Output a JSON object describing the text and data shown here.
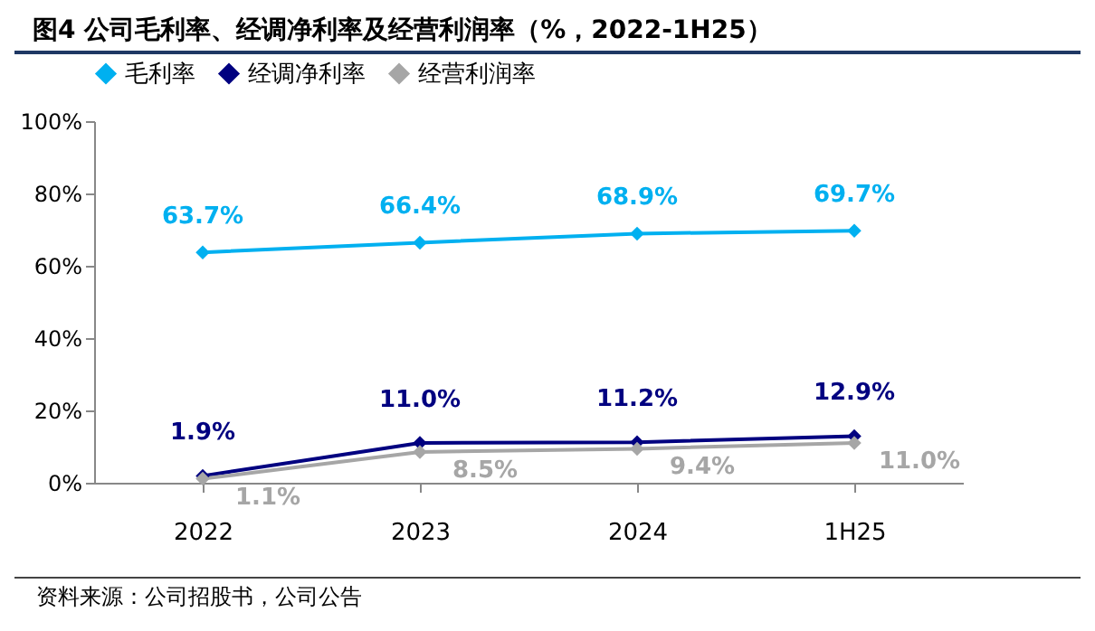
{
  "chart_data": {
    "type": "line",
    "title": "图4 公司毛利率、经调净利率及经营利润率（%，2022-1H25）",
    "annotations": [
      "资料来源：公司招股书，公司公告"
    ],
    "categories": [
      "2022",
      "2023",
      "2024",
      "1H25"
    ],
    "series": [
      {
        "name": "毛利率",
        "color": "#00b0f0",
        "values": [
          63.7,
          66.4,
          68.9,
          69.7
        ],
        "value_labels": [
          "63.7%",
          "66.4%",
          "68.9%",
          "69.7%"
        ]
      },
      {
        "name": "经调净利率",
        "color": "#000080",
        "values": [
          1.9,
          11.0,
          11.2,
          12.9
        ],
        "value_labels": [
          "1.9%",
          "11.0%",
          "11.2%",
          "12.9%"
        ]
      },
      {
        "name": "经营利润率",
        "color": "#a6a6a6",
        "values": [
          1.1,
          8.5,
          9.4,
          11.0
        ],
        "value_labels": [
          "1.1%",
          "8.5%",
          "9.4%",
          "11.0%"
        ]
      }
    ],
    "ylim": [
      0,
      100
    ],
    "yticks": [
      {
        "value": 0,
        "label": "0%"
      },
      {
        "value": 20,
        "label": "20%"
      },
      {
        "value": 40,
        "label": "40%"
      },
      {
        "value": 60,
        "label": "60%"
      },
      {
        "value": 80,
        "label": "80%"
      },
      {
        "value": 100,
        "label": "100%"
      }
    ],
    "legend": "top",
    "marker": "diamond",
    "grid": false
  }
}
